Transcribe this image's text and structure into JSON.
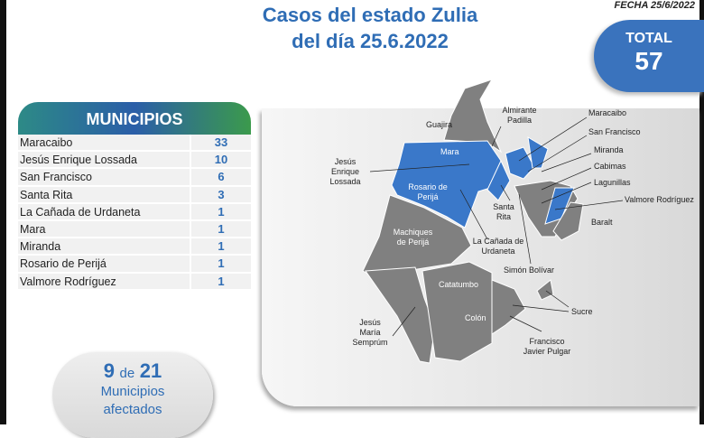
{
  "header": {
    "title_line1": "Casos del estado Zulia",
    "title_line2": "del día 25.6.2022",
    "fecha": "FECHA 25/6/2022"
  },
  "total": {
    "label": "TOTAL",
    "value": "57"
  },
  "table": {
    "header": "MUNICIPIOS",
    "rows": [
      {
        "name": "Maracaibo",
        "value": "33"
      },
      {
        "name": "Jesús Enrique Lossada",
        "value": "10"
      },
      {
        "name": "San Francisco",
        "value": "6"
      },
      {
        "name": "Santa Rita",
        "value": "3"
      },
      {
        "name": "La Cañada de Urdaneta",
        "value": "1"
      },
      {
        "name": "Mara",
        "value": "1"
      },
      {
        "name": "Miranda",
        "value": "1"
      },
      {
        "name": "Rosario de Perijá",
        "value": "1"
      },
      {
        "name": "Valmore Rodríguez",
        "value": "1"
      }
    ]
  },
  "summary": {
    "affected": "9",
    "of": "de",
    "total": "21",
    "line1": "Municipios",
    "line2": "afectados"
  },
  "colors": {
    "affected": "#3a78c9",
    "unaffected": "#808080",
    "accent": "#2f6db5"
  },
  "map_labels": {
    "guajira": "Guajira",
    "almirante": "Almirante Padilla",
    "maracaibo": "Maracaibo",
    "sanfrancisco": "San Francisco",
    "miranda": "Miranda",
    "cabimas": "Cabimas",
    "lagunillas": "Lagunillas",
    "valmore": "Valmore Rodríguez",
    "baralt": "Baralt",
    "jel": "Jesús Enrique Lossada",
    "mara": "Mara",
    "rosario": "Rosario de Perijá",
    "santarita": "Santa Rita",
    "canada": "La Cañada de Urdaneta",
    "machiques": "Machiques de Perijá",
    "simon": "Simón Bolívar",
    "catatumbo": "Catatumbo",
    "sucre": "Sucre",
    "jms": "Jesús María Semprúm",
    "colon": "Colón",
    "pulgar": "Francisco Javier Pulgar"
  }
}
